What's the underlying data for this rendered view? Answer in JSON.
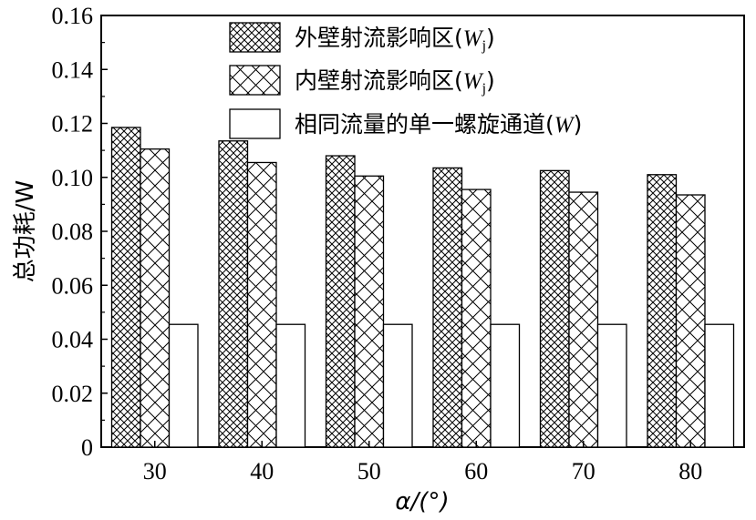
{
  "chart_data": {
    "type": "bar",
    "xlabel": "α/(°)",
    "ylabel": "总功耗/W",
    "categories": [
      "30",
      "40",
      "50",
      "60",
      "70",
      "80"
    ],
    "ylim": [
      0,
      0.16
    ],
    "yticks": [
      "0",
      "0.02",
      "0.04",
      "0.06",
      "0.08",
      "0.10",
      "0.12",
      "0.14",
      "0.16"
    ],
    "grid": false,
    "legend_position": "top-right",
    "series": [
      {
        "name": "外壁射流影响区(Wj)",
        "legend_label": {
          "prefix": "外壁射流影响区(",
          "var": "W",
          "sub": "j",
          "suffix": ")"
        },
        "pattern": "dense-crosshatch",
        "values": [
          0.1185,
          0.1135,
          0.108,
          0.1035,
          0.1025,
          0.101
        ]
      },
      {
        "name": "内壁射流影响区(Wj)",
        "legend_label": {
          "prefix": "内壁射流影响区(",
          "var": "W",
          "sub": "j",
          "suffix": ")"
        },
        "pattern": "open-crosshatch",
        "values": [
          0.1105,
          0.1055,
          0.1005,
          0.0955,
          0.0945,
          0.0935
        ]
      },
      {
        "name": "相同流量的单一螺旋通道(W)",
        "legend_label": {
          "prefix": "相同流量的单一螺旋通道(",
          "var": "W",
          "sub": "",
          "suffix": ")"
        },
        "pattern": "none",
        "values": [
          0.0455,
          0.0455,
          0.0455,
          0.0455,
          0.0455,
          0.0455
        ]
      }
    ]
  }
}
